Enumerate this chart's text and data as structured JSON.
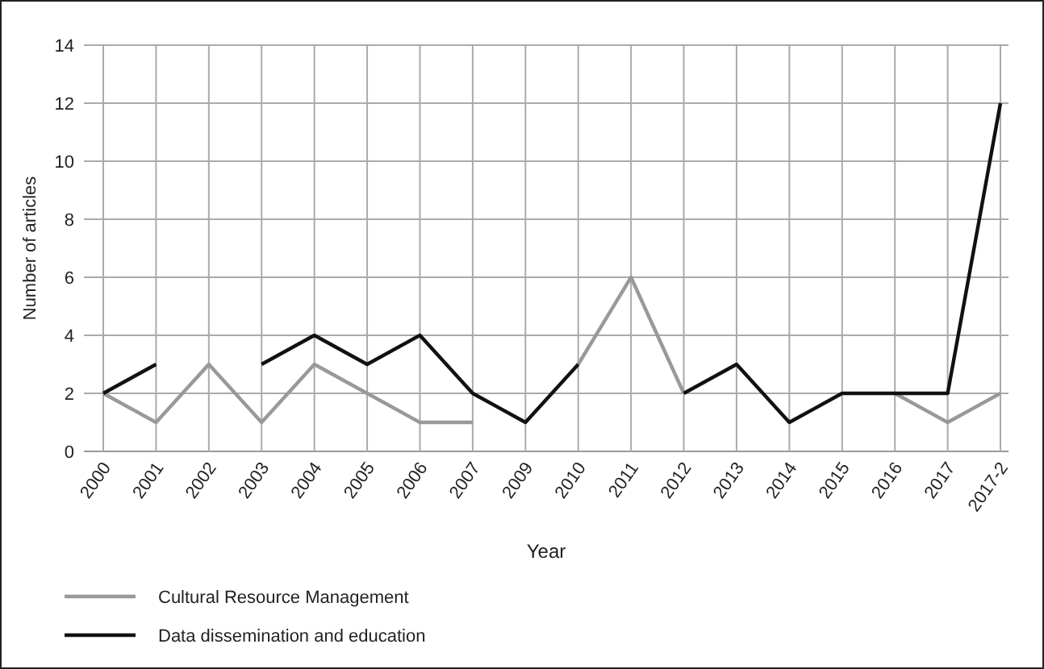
{
  "chart_data": {
    "type": "line",
    "xlabel": "Year",
    "ylabel": "Number of articles",
    "categories": [
      "2000",
      "2001",
      "2002",
      "2003",
      "2004",
      "2005",
      "2006",
      "2007",
      "2009",
      "2010",
      "2011",
      "2012",
      "2013",
      "2014",
      "2015",
      "2016",
      "2017",
      "2017-2"
    ],
    "series": [
      {
        "name": "Cultural Resource Management",
        "color": "#999999",
        "values": [
          2,
          1,
          3,
          1,
          3,
          2,
          1,
          1,
          null,
          3,
          6,
          2,
          null,
          null,
          null,
          2,
          1,
          2
        ]
      },
      {
        "name": "Data dissemination and education",
        "color": "#111111",
        "values": [
          2,
          3,
          null,
          3,
          4,
          3,
          4,
          2,
          1,
          3,
          null,
          2,
          3,
          1,
          2,
          2,
          2,
          12
        ]
      }
    ],
    "ylim": [
      0,
      14
    ],
    "yticks": [
      0,
      2,
      4,
      6,
      8,
      10,
      12,
      14
    ],
    "grid": true,
    "legend": "bottom",
    "marker": "none",
    "line_style": "solid"
  }
}
